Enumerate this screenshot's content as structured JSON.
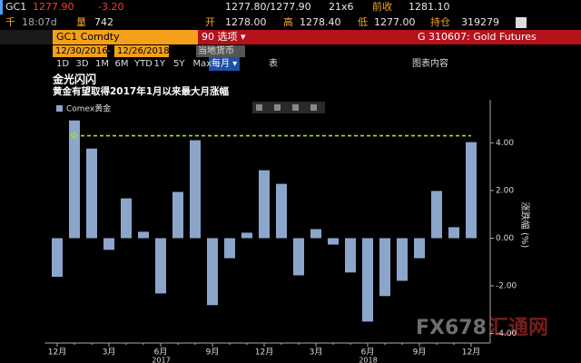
{
  "header": {
    "ticker": "GC1",
    "last": "1277.90",
    "change": "-3.20",
    "bid_ask": "1277.80/1277.90",
    "size": "21x6",
    "prev_close_label": "前收",
    "prev_close": "1281.10",
    "time_prefix": "千",
    "time": "18:07d",
    "volume_label": "量",
    "volume": "742",
    "open_label": "开",
    "open": "1278.00",
    "high_label": "高",
    "high": "1278.40",
    "low_label": "低",
    "low": "1277.00",
    "oi_label": "持仓",
    "oi": "319279"
  },
  "toolbar": {
    "security": "GC1 Comdty",
    "menu": "90 选项 ▾",
    "function": "G 310607: Gold Futures",
    "start_date": "12/30/2016",
    "end_date": "12/26/2018",
    "currency": "当地货币",
    "periods": [
      "1D",
      "3D",
      "1M",
      "6M",
      "YTD",
      "1Y",
      "5Y",
      "Max"
    ],
    "frequency": "每月 ▾",
    "table": "表",
    "chart_content": "图表内容"
  },
  "watermark": {
    "brand": "FX678",
    "name": "汇通网"
  },
  "chart_data": {
    "type": "bar",
    "title": "金光闪闪",
    "subtitle": "黄金有望取得2017年1月以来最大月涨幅",
    "y_label": "涨跌幅 (%)",
    "categories": [
      "12月",
      null,
      null,
      "3月",
      null,
      null,
      "6月",
      null,
      null,
      "9月",
      null,
      null,
      "12月",
      null,
      null,
      "3月",
      null,
      null,
      "6月",
      null,
      null,
      "9月",
      null,
      null,
      "12月"
    ],
    "x_groups": [
      "2017",
      "2018"
    ],
    "series": [
      {
        "name": "Comex黄金",
        "color": "#8ba5cb",
        "values": [
          -1.62,
          4.94,
          3.76,
          -0.49,
          1.67,
          0.27,
          -2.32,
          1.94,
          4.11,
          -2.81,
          -0.84,
          0.23,
          2.85,
          2.28,
          -1.56,
          0.38,
          -0.27,
          -1.44,
          -3.5,
          -2.43,
          -1.79,
          -0.84,
          1.98,
          0.46,
          4.03
        ]
      }
    ],
    "reference_line": {
      "value": 4.3,
      "color": "#9ee52b"
    },
    "ylim": [
      -4.4,
      5.5
    ],
    "yticks": [
      {
        "value": -4,
        "label": "-4.00"
      },
      {
        "value": -2,
        "label": "-2.00"
      },
      {
        "value": 0,
        "label": "0.00"
      },
      {
        "value": 2,
        "label": "2.00"
      },
      {
        "value": 4,
        "label": "4.00"
      }
    ],
    "grid": false
  }
}
